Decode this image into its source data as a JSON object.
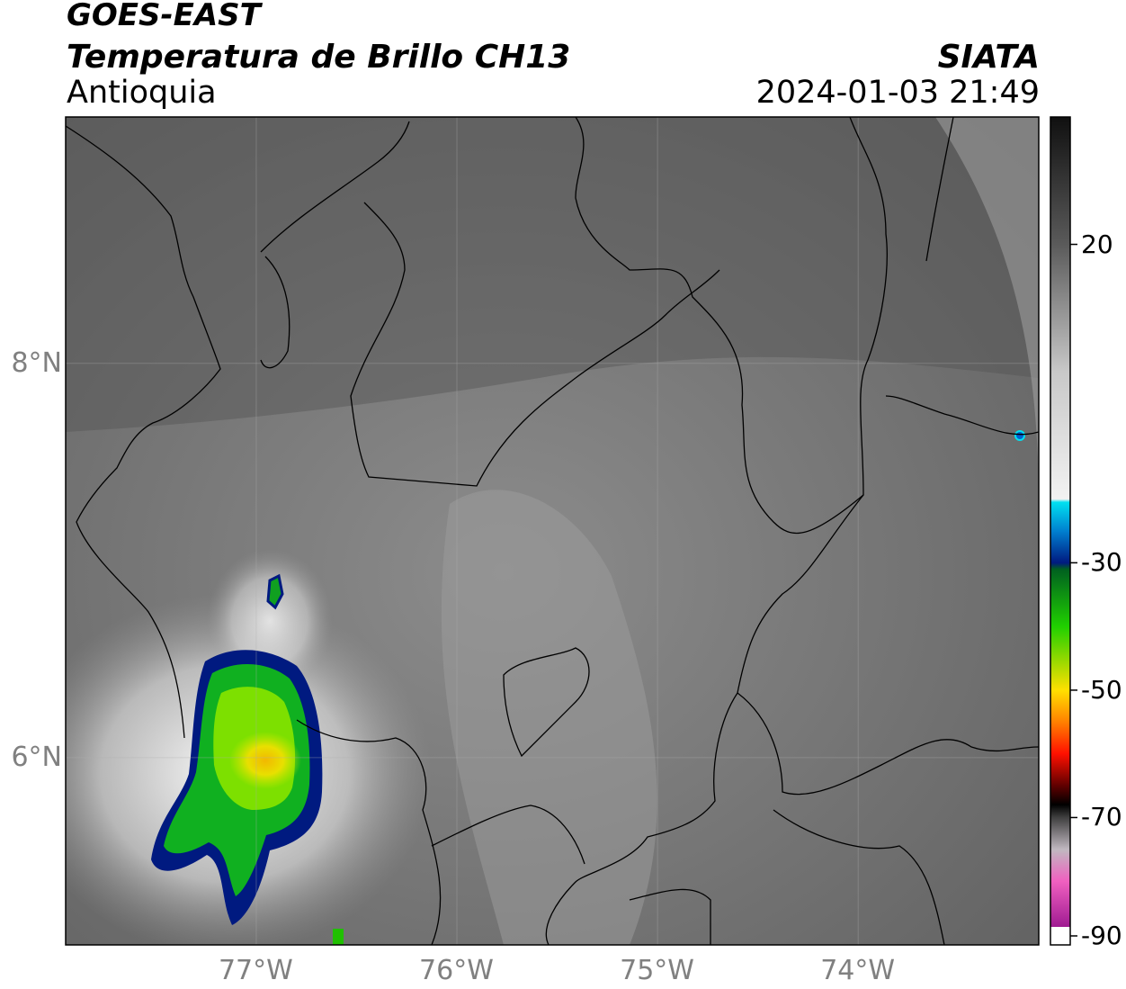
{
  "header": {
    "line1": "GOES-EAST",
    "line2": "Temperatura de Brillo CH13",
    "region": "Antioquia",
    "org": "SIATA",
    "datetime": "2024-01-03 21:49"
  },
  "map": {
    "lon_range": [
      -77.95,
      -73.1
    ],
    "lat_range": [
      5.05,
      9.25
    ],
    "lat_ticks": [
      {
        "value": 8,
        "label": "8°N"
      },
      {
        "value": 6,
        "label": "6°N"
      }
    ],
    "lon_ticks": [
      {
        "value": -77,
        "label": "77°W"
      },
      {
        "value": -76,
        "label": "76°W"
      },
      {
        "value": -75,
        "label": "75°W"
      },
      {
        "value": -74,
        "label": "74°W"
      }
    ],
    "gridlines": true
  },
  "colorbar": {
    "range": [
      -90,
      40
    ],
    "ticks": [
      {
        "value": 20,
        "label": "20"
      },
      {
        "value": -30,
        "label": "-30"
      },
      {
        "value": -50,
        "label": "-50"
      },
      {
        "value": -70,
        "label": "-70"
      },
      {
        "value": -90,
        "label": "-90"
      }
    ],
    "stops": [
      {
        "value": 40,
        "color": "#101010"
      },
      {
        "value": 20,
        "color": "#5a5a5a"
      },
      {
        "value": 0,
        "color": "#c8c8c8"
      },
      {
        "value": -20,
        "color": "#f2f2f2"
      },
      {
        "value": -20.5,
        "color": "#00e0f0"
      },
      {
        "value": -25,
        "color": "#0080d0"
      },
      {
        "value": -30,
        "color": "#001a80"
      },
      {
        "value": -31,
        "color": "#006020"
      },
      {
        "value": -40,
        "color": "#20d000"
      },
      {
        "value": -50,
        "color": "#ffe000"
      },
      {
        "value": -55,
        "color": "#ff8000"
      },
      {
        "value": -60,
        "color": "#ff1000"
      },
      {
        "value": -65,
        "color": "#600000"
      },
      {
        "value": -68,
        "color": "#000000"
      },
      {
        "value": -70,
        "color": "#404040"
      },
      {
        "value": -75,
        "color": "#c0b8c0"
      },
      {
        "value": -80,
        "color": "#f060c0"
      },
      {
        "value": -90,
        "color": "#800080"
      }
    ]
  }
}
